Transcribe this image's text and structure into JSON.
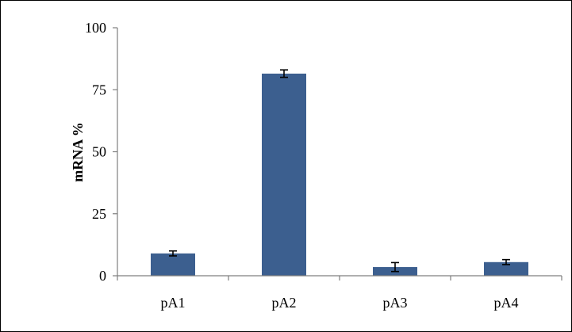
{
  "chart_data": {
    "type": "bar",
    "categories": [
      "pA1",
      "pA2",
      "pA3",
      "pA4"
    ],
    "values": [
      9,
      81.5,
      3.5,
      5.5
    ],
    "errors": [
      1,
      1.5,
      1.8,
      1
    ],
    "ylabel": "mRNA %",
    "ylim": [
      0,
      100
    ],
    "yticks": [
      0,
      25,
      50,
      75,
      100
    ],
    "grid": false,
    "legend": "none",
    "bar_color": "#3c5f8f"
  }
}
